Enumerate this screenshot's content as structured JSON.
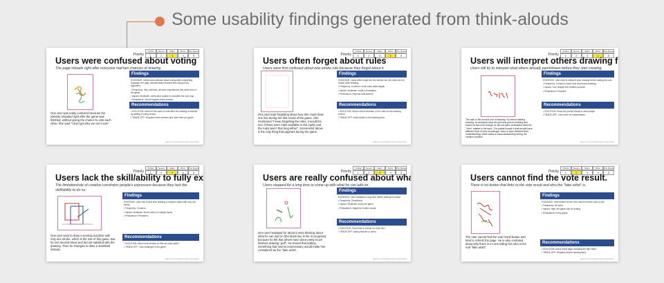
{
  "header": {
    "title": "Some usability findings generated from think-alouds"
  },
  "priority_header": {
    "label": "Priority",
    "cols": [
      "Critical",
      "Severe",
      "Major",
      "Minor",
      "Pet Peeve"
    ],
    "nums": [
      "1",
      "2",
      "3",
      "4",
      "5"
    ]
  },
  "panel_labels": {
    "findings": "Findings",
    "recommendations": "Recommendations"
  },
  "slides": [
    {
      "title": "Users were confused about voting",
      "subtitle": "The page reloads right after everyone had two chances of drawing",
      "selected": 3,
      "caption": "One user was really confused because the website reloaded right after the game was finished, without giving the chance to vote each other. She said \"I don't get why we can't vote\".",
      "findings": [
        "EVIDENCE: Users had confusion about voting after completing drawings; the page unexpectedly reloaded and voting never appeared.",
        "• Frequency: Very common; all users experienced this at the end of the game.",
        "• Impact: Moderate; users were unable to complete the core loop.",
        "• Persistence: Would happen every session."
      ],
      "recs": [
        "• SOLUTION: Allow for the users to vote after the drawing is finished by adding a voting screen.",
        "• TRADE-OFF: Requires more screens and more time per game."
      ],
      "footer": "Based on VIS Notebook Game Deliverables"
    },
    {
      "title": "Users often forget about rules",
      "subtitle": "Users were first confused about one-stroke rule because they forgot about it.",
      "selected": 4,
      "caption": "One user kept forgetting about how she could draw one line during her first round of the game. She mentioned \"I keep forgetting the rules, it would be nice if there were rules available in the easily and the rules aren't that long either\". Screenshot above is the only thing that appears during the game.",
      "findings": [
        "EVIDENCE: Users often forget the one-stroke rule; the rules are not visible while drawing.",
        "• Frequency: Common; most users asked again.",
        "• Impact: Moderate; leads to frustration.",
        "• Persistence: Repeats until learned."
      ],
      "recs": [
        "• SOLUTION: Show a short reminder of the rules on the drawing screen.",
        "• TRADE-OFF: Adds clutter to the drawing area."
      ],
      "footer": "Based on VIS Notebook Game Deliverables"
    },
    {
      "title": "Users will interpret others drawing first.",
      "subtitle": "Users will try to interpret what others already paint/drawn before they start creating.",
      "selected": 4,
      "caption": "The user is the second one of drawing. So before starting drawing, he analyzed what his previous person drawing and looked at that even though he did not quite understand what the \"John\" related to the topic. The partial impact is that people have different level of prior knowledge, there is topic between their understanding, which leads to misunderstanding during the creative process.",
      "findings": [
        "EVIDENCE: User tried to interpret prior drawing before adding his own.",
        "• Frequency: Common; users look at previous drawing.",
        "• Impact: Low; shapes the creative process.",
        "• Persistence: Frequent."
      ],
      "recs": [
        "• SOLUTION: Show the prompt clearly to each player.",
        "• TRADE-OFF: Less room for interpretation."
      ],
      "footer": "Based on VIS Notebook Game Deliverables"
    },
    {
      "title": "Users lack the skill/ability to fully express under specific creation rules.",
      "subtitle": "The limitation/rule of creation constrains people's expression because they lack the skill/ability to do so.",
      "selected": 3,
      "caption": "One user want to draw a running machine with only one stroke, which is the rule of this game. But he met several times and did not satisfied with the drawing. Then he changed to draw a dumbbell instead.",
      "findings": [
        "EVIDENCE: User had a hard time drawing a complex object with only one stroke.",
        "• Frequency: Common.",
        "• Impact: Moderate; forces users to change topics.",
        "• Persistence: Persistent."
      ],
      "recs": [
        "• SOLUTION: Allow more strokes or offer an undo option.",
        "• TRADE-OFF: Less challenge in the game."
      ],
      "footer": "Based on VIS Notebook Game Deliverables"
    },
    {
      "title": "Users are really confused about what they can add on.",
      "subtitle": "Users stopped for a long time to come up with what he can add on.",
      "selected": 3,
      "caption": "One user hesitated for about 8 mins thinking about what he can add on (the black line is the in-progress) because he felt that others have done pretty much finished drawing \"golf\". He feared that adding something that seems unnecessary would make him considered as the \"fake artist\".",
      "findings": [
        "EVIDENCE: User hesitated a long time before adding his stroke.",
        "• Frequency: Occasional.",
        "• Impact: Moderate; slows the game.",
        "• Persistence: Happens in later rounds."
      ],
      "recs": [
        "• SOLUTION: Give hints or a timer for each turn.",
        "• TRADE-OFF: Adds pressure to users."
      ],
      "footer": "Based on VIS Notebook Game Deliverables"
    },
    {
      "title": "Users cannot find the vote result.",
      "subtitle": "There is no button that links to the vote result and who the \"fake artist\" is.",
      "selected": 2,
      "caption": "The user cannot find the vote result button and tried to refresh the page. He is also confused about why there is no one telling him who is the real \"fake artist\".",
      "findings": [
        "EVIDENCE: User looked for the vote result but there was no link.",
        "• Frequency: All users.",
        "• Impact: High; the game has no ending.",
        "• Persistence: Every game."
      ],
      "recs": [
        "• SOLUTION: Add a result page revealing the fake artist.",
        "• TRADE-OFF: Requires further development."
      ],
      "footer": "Based on VIS Notebook Game Deliverables"
    }
  ]
}
